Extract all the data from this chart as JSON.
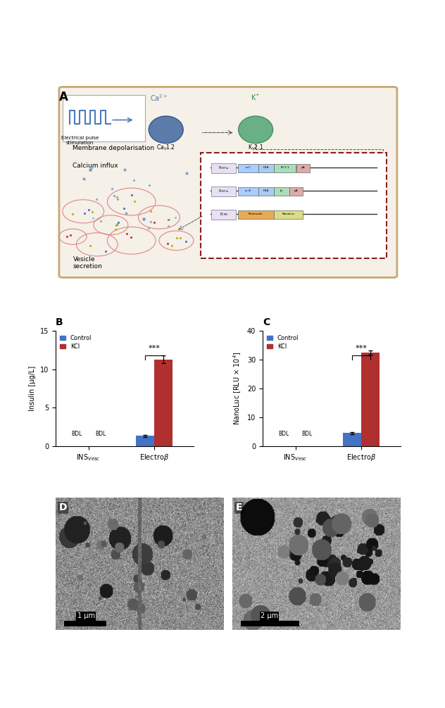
{
  "panel_B": {
    "categories": [
      "INS_Vesc_ctrl",
      "INS_Vesc_KCl",
      "Electro_ctrl",
      "Electro_KCl"
    ],
    "x_labels": [
      "INS$_{Vesc}$",
      "Electroβ"
    ],
    "control_values": [
      0,
      0,
      1.3,
      0
    ],
    "kci_values": [
      0,
      0,
      0,
      11.3
    ],
    "control_err": [
      0,
      0,
      0.15,
      0
    ],
    "kci_err": [
      0,
      0,
      0,
      0.5
    ],
    "ylabel": "Insulin [μg/L]",
    "ylim": [
      0,
      15
    ],
    "yticks": [
      0,
      5,
      10,
      15
    ],
    "bdl_text": "BDL  BDL",
    "sig_text": "***",
    "control_color": "#4472c4",
    "kci_color": "#b03030",
    "title": "B"
  },
  "panel_C": {
    "categories": [
      "INS_Vesc_ctrl",
      "INS_Vesc_KCl",
      "Electro_ctrl",
      "Electro_KCl"
    ],
    "x_labels": [
      "INS$_{Vesc}$",
      "Electroβ"
    ],
    "control_values": [
      0,
      0,
      4.5,
      0
    ],
    "kci_values": [
      0,
      0,
      0,
      32.5
    ],
    "control_err": [
      0,
      0,
      0.4,
      0
    ],
    "kci_err": [
      0,
      0,
      0,
      0.8
    ],
    "ylabel": "NanoLuc [RLU × 10$^{4}$]",
    "ylim": [
      0,
      40
    ],
    "yticks": [
      0,
      10,
      20,
      30,
      40
    ],
    "bdl_text": "BDL  BDL",
    "sig_text": "***",
    "control_color": "#4472c4",
    "kci_color": "#b03030",
    "title": "C"
  },
  "bg_color": "#ffffff",
  "panel_A_bg": "#f5f0e8",
  "cell_border": "#c8a870",
  "dna_box_border": "#8b2020"
}
